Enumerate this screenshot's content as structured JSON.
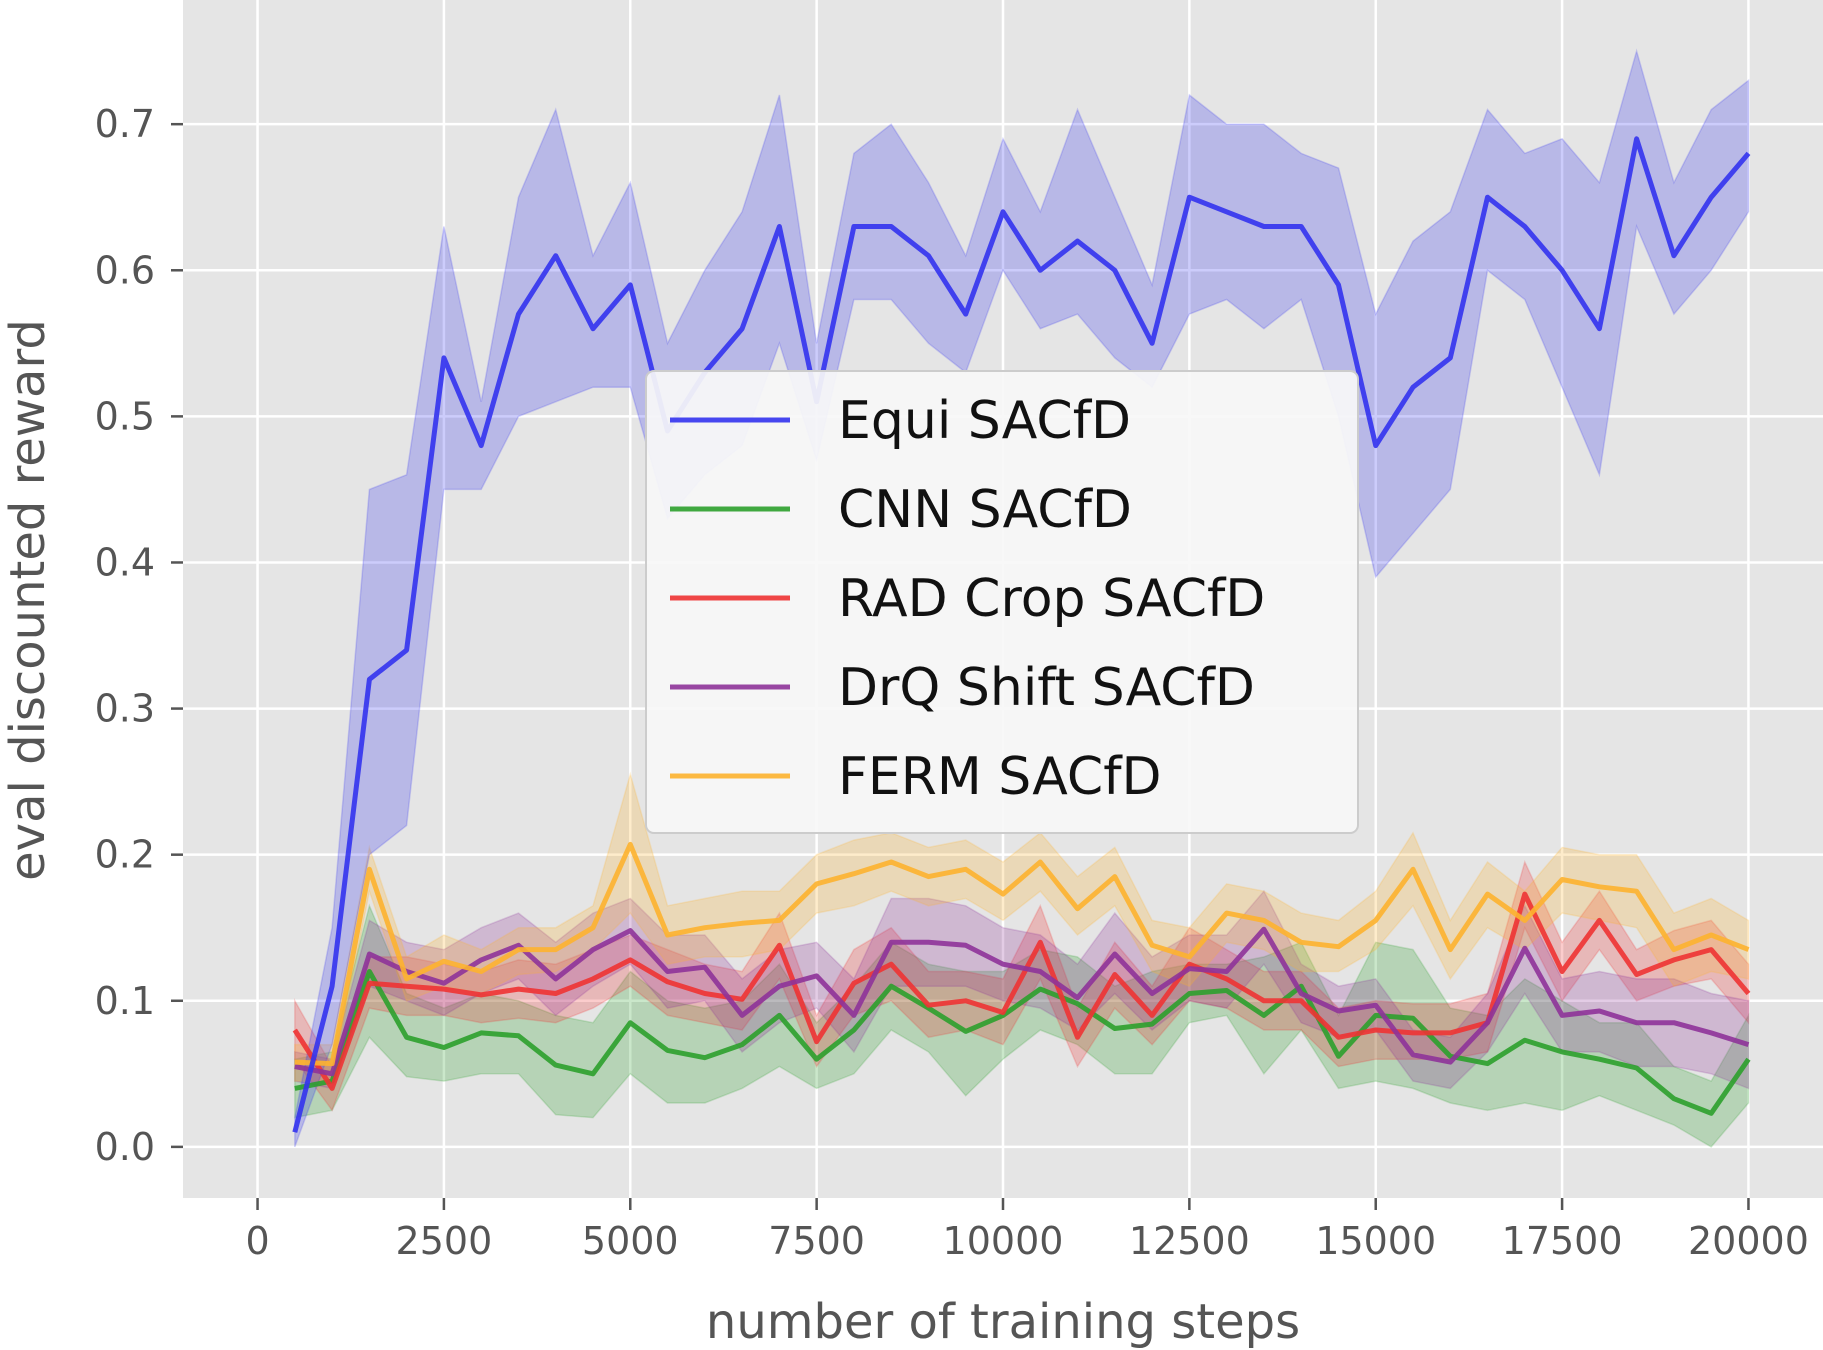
{
  "chart_data": {
    "type": "line",
    "title": "",
    "xlabel": "number of training steps",
    "ylabel": "eval discounted reward",
    "xlim": [
      -1000,
      21000
    ],
    "ylim": [
      -0.035,
      0.785
    ],
    "xticks": [
      0,
      2500,
      5000,
      7500,
      10000,
      12500,
      15000,
      17500,
      20000
    ],
    "yticks": [
      0.0,
      0.1,
      0.2,
      0.3,
      0.4,
      0.5,
      0.6,
      0.7
    ],
    "xtick_labels": [
      "0",
      "2500",
      "5000",
      "7500",
      "10000",
      "12500",
      "15000",
      "17500",
      "20000"
    ],
    "ytick_labels": [
      "0.0",
      "0.1",
      "0.2",
      "0.3",
      "0.4",
      "0.5",
      "0.6",
      "0.7"
    ],
    "grid": true,
    "background": "#e5e5e5",
    "legend_position": "center",
    "x": [
      500,
      1000,
      1500,
      2000,
      2500,
      3000,
      3500,
      4000,
      4500,
      5000,
      5500,
      6000,
      6500,
      7000,
      7500,
      8000,
      8500,
      9000,
      9500,
      10000,
      10500,
      11000,
      11500,
      12000,
      12500,
      13000,
      13500,
      14000,
      14500,
      15000,
      15500,
      16000,
      16500,
      17000,
      17500,
      18000,
      18500,
      19000,
      19500,
      20000
    ],
    "series": [
      {
        "name": "Equi SACfD",
        "color": "#3333ee",
        "values": [
          0.01,
          0.11,
          0.32,
          0.34,
          0.54,
          0.48,
          0.57,
          0.61,
          0.56,
          0.59,
          0.49,
          0.53,
          0.56,
          0.63,
          0.51,
          0.63,
          0.63,
          0.61,
          0.57,
          0.64,
          0.6,
          0.62,
          0.6,
          0.55,
          0.65,
          0.64,
          0.63,
          0.63,
          0.59,
          0.48,
          0.52,
          0.54,
          0.65,
          0.63,
          0.6,
          0.56,
          0.69,
          0.61,
          0.65,
          0.68
        ],
        "lower": [
          0.0,
          0.07,
          0.2,
          0.22,
          0.45,
          0.45,
          0.5,
          0.51,
          0.52,
          0.52,
          0.43,
          0.46,
          0.48,
          0.55,
          0.47,
          0.58,
          0.58,
          0.55,
          0.53,
          0.6,
          0.56,
          0.57,
          0.54,
          0.52,
          0.57,
          0.58,
          0.56,
          0.58,
          0.5,
          0.39,
          0.42,
          0.45,
          0.6,
          0.58,
          0.52,
          0.46,
          0.63,
          0.57,
          0.6,
          0.64
        ],
        "upper": [
          0.02,
          0.15,
          0.45,
          0.46,
          0.63,
          0.51,
          0.65,
          0.71,
          0.61,
          0.66,
          0.55,
          0.6,
          0.64,
          0.72,
          0.55,
          0.68,
          0.7,
          0.66,
          0.61,
          0.69,
          0.64,
          0.71,
          0.65,
          0.59,
          0.72,
          0.7,
          0.7,
          0.68,
          0.67,
          0.57,
          0.62,
          0.64,
          0.71,
          0.68,
          0.69,
          0.66,
          0.75,
          0.66,
          0.71,
          0.73
        ]
      },
      {
        "name": "CNN SACfD",
        "color": "#2ca02c",
        "values": [
          0.04,
          0.045,
          0.12,
          0.075,
          0.068,
          0.078,
          0.076,
          0.056,
          0.05,
          0.085,
          0.066,
          0.061,
          0.07,
          0.09,
          0.06,
          0.08,
          0.11,
          0.095,
          0.079,
          0.09,
          0.108,
          0.098,
          0.081,
          0.084,
          0.105,
          0.107,
          0.09,
          0.11,
          0.062,
          0.09,
          0.088,
          0.062,
          0.057,
          0.073,
          0.065,
          0.06,
          0.054,
          0.033,
          0.023,
          0.06
        ],
        "lower": [
          0.02,
          0.025,
          0.075,
          0.048,
          0.045,
          0.05,
          0.05,
          0.022,
          0.02,
          0.05,
          0.03,
          0.03,
          0.04,
          0.055,
          0.04,
          0.05,
          0.08,
          0.065,
          0.035,
          0.06,
          0.08,
          0.07,
          0.05,
          0.05,
          0.085,
          0.09,
          0.05,
          0.08,
          0.04,
          0.045,
          0.04,
          0.03,
          0.025,
          0.03,
          0.025,
          0.035,
          0.025,
          0.015,
          0.0,
          0.03
        ],
        "upper": [
          0.06,
          0.065,
          0.165,
          0.105,
          0.095,
          0.105,
          0.1,
          0.09,
          0.085,
          0.12,
          0.1,
          0.095,
          0.1,
          0.125,
          0.085,
          0.11,
          0.14,
          0.125,
          0.12,
          0.12,
          0.135,
          0.13,
          0.11,
          0.12,
          0.125,
          0.125,
          0.13,
          0.14,
          0.09,
          0.14,
          0.135,
          0.095,
          0.09,
          0.115,
          0.1,
          0.085,
          0.085,
          0.055,
          0.045,
          0.09
        ]
      },
      {
        "name": "RAD Crop SACfD",
        "color": "#ee3333",
        "values": [
          0.08,
          0.04,
          0.112,
          0.11,
          0.108,
          0.104,
          0.108,
          0.105,
          0.115,
          0.128,
          0.113,
          0.105,
          0.101,
          0.138,
          0.072,
          0.112,
          0.125,
          0.097,
          0.1,
          0.092,
          0.14,
          0.075,
          0.118,
          0.09,
          0.125,
          0.115,
          0.1,
          0.1,
          0.075,
          0.08,
          0.078,
          0.078,
          0.085,
          0.173,
          0.12,
          0.155,
          0.118,
          0.128,
          0.135,
          0.105
        ],
        "lower": [
          0.06,
          0.025,
          0.095,
          0.09,
          0.09,
          0.085,
          0.088,
          0.085,
          0.095,
          0.11,
          0.09,
          0.085,
          0.08,
          0.115,
          0.055,
          0.09,
          0.1,
          0.075,
          0.08,
          0.07,
          0.115,
          0.055,
          0.095,
          0.07,
          0.1,
          0.095,
          0.08,
          0.08,
          0.055,
          0.06,
          0.06,
          0.06,
          0.065,
          0.15,
          0.1,
          0.135,
          0.1,
          0.11,
          0.115,
          0.085
        ],
        "upper": [
          0.1,
          0.055,
          0.13,
          0.13,
          0.125,
          0.12,
          0.128,
          0.125,
          0.135,
          0.145,
          0.135,
          0.125,
          0.12,
          0.16,
          0.09,
          0.135,
          0.15,
          0.12,
          0.12,
          0.115,
          0.165,
          0.095,
          0.14,
          0.11,
          0.15,
          0.135,
          0.12,
          0.12,
          0.095,
          0.1,
          0.098,
          0.098,
          0.105,
          0.195,
          0.14,
          0.175,
          0.135,
          0.148,
          0.155,
          0.125
        ]
      },
      {
        "name": "DrQ Shift SACfD",
        "color": "#8e3399",
        "values": [
          0.055,
          0.05,
          0.132,
          0.12,
          0.112,
          0.128,
          0.138,
          0.115,
          0.135,
          0.148,
          0.12,
          0.123,
          0.09,
          0.11,
          0.117,
          0.09,
          0.14,
          0.14,
          0.138,
          0.125,
          0.12,
          0.102,
          0.132,
          0.105,
          0.122,
          0.12,
          0.149,
          0.105,
          0.093,
          0.097,
          0.063,
          0.058,
          0.085,
          0.136,
          0.09,
          0.093,
          0.085,
          0.085,
          0.078,
          0.07
        ],
        "lower": [
          0.045,
          0.04,
          0.11,
          0.1,
          0.09,
          0.105,
          0.115,
          0.09,
          0.11,
          0.125,
          0.095,
          0.1,
          0.065,
          0.085,
          0.095,
          0.065,
          0.11,
          0.11,
          0.11,
          0.1,
          0.095,
          0.08,
          0.105,
          0.08,
          0.1,
          0.095,
          0.125,
          0.085,
          0.075,
          0.08,
          0.045,
          0.04,
          0.065,
          0.105,
          0.065,
          0.065,
          0.055,
          0.055,
          0.05,
          0.04
        ],
        "upper": [
          0.065,
          0.06,
          0.155,
          0.14,
          0.135,
          0.15,
          0.16,
          0.14,
          0.16,
          0.17,
          0.145,
          0.145,
          0.115,
          0.135,
          0.14,
          0.115,
          0.17,
          0.17,
          0.165,
          0.15,
          0.145,
          0.125,
          0.16,
          0.13,
          0.145,
          0.145,
          0.175,
          0.125,
          0.11,
          0.115,
          0.08,
          0.075,
          0.105,
          0.165,
          0.115,
          0.12,
          0.115,
          0.115,
          0.105,
          0.1
        ]
      },
      {
        "name": "FERM SACfD",
        "color": "#fdb22f",
        "values": [
          0.058,
          0.057,
          0.19,
          0.115,
          0.127,
          0.12,
          0.135,
          0.135,
          0.15,
          0.207,
          0.145,
          0.15,
          0.153,
          0.155,
          0.18,
          0.187,
          0.195,
          0.185,
          0.19,
          0.173,
          0.195,
          0.163,
          0.185,
          0.138,
          0.13,
          0.16,
          0.155,
          0.14,
          0.137,
          0.155,
          0.19,
          0.135,
          0.173,
          0.155,
          0.183,
          0.178,
          0.175,
          0.135,
          0.145,
          0.135
        ],
        "lower": [
          0.045,
          0.045,
          0.175,
          0.1,
          0.11,
          0.105,
          0.118,
          0.12,
          0.135,
          0.16,
          0.125,
          0.13,
          0.13,
          0.135,
          0.16,
          0.165,
          0.175,
          0.165,
          0.17,
          0.155,
          0.175,
          0.145,
          0.165,
          0.12,
          0.11,
          0.14,
          0.135,
          0.12,
          0.12,
          0.135,
          0.165,
          0.115,
          0.15,
          0.135,
          0.16,
          0.155,
          0.15,
          0.11,
          0.12,
          0.115
        ],
        "upper": [
          0.07,
          0.07,
          0.205,
          0.13,
          0.145,
          0.135,
          0.15,
          0.15,
          0.165,
          0.255,
          0.165,
          0.17,
          0.175,
          0.175,
          0.2,
          0.21,
          0.215,
          0.205,
          0.21,
          0.195,
          0.215,
          0.185,
          0.205,
          0.155,
          0.15,
          0.18,
          0.175,
          0.16,
          0.155,
          0.175,
          0.215,
          0.155,
          0.195,
          0.175,
          0.205,
          0.2,
          0.2,
          0.16,
          0.17,
          0.155
        ]
      }
    ]
  }
}
